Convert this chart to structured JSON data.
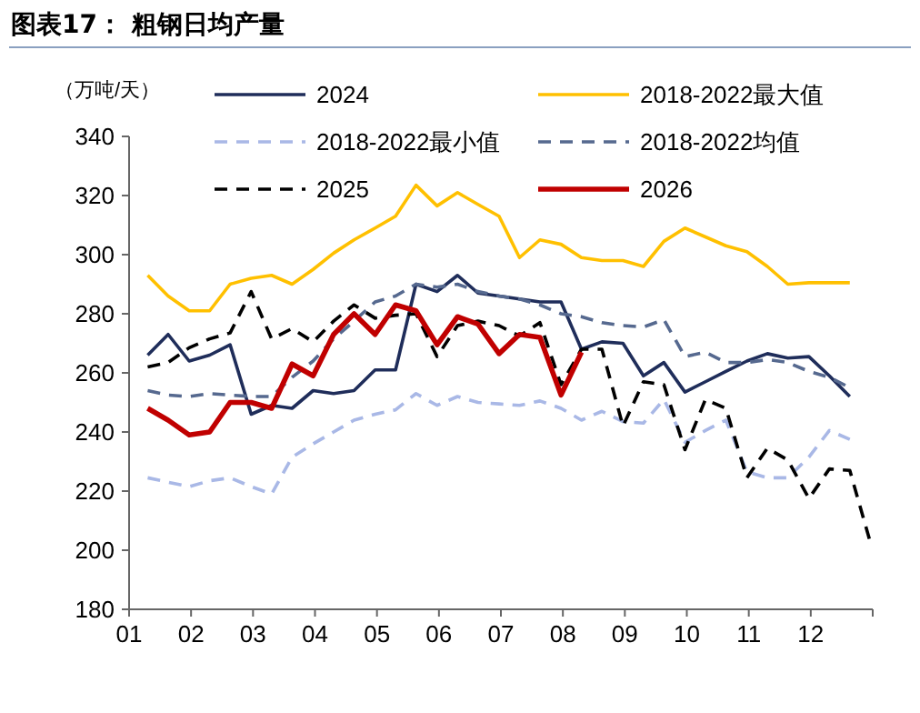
{
  "chart_data": {
    "type": "line",
    "title": "图表17： 粗钢日均产量",
    "ylabel": "（万吨/天）",
    "x": [
      1.3,
      1.63,
      1.97,
      2.3,
      2.63,
      2.97,
      3.3,
      3.63,
      3.97,
      4.3,
      4.63,
      4.97,
      5.3,
      5.63,
      5.97,
      6.3,
      6.63,
      6.97,
      7.3,
      7.63,
      7.97,
      8.3,
      8.63,
      8.97,
      9.3,
      9.63,
      9.97,
      10.3,
      10.63,
      10.97,
      11.3,
      11.63,
      11.97,
      12.3,
      12.63,
      12.97
    ],
    "xlim": [
      1,
      13
    ],
    "xticks": [
      {
        "value": 1,
        "label": "01"
      },
      {
        "value": 2,
        "label": "02"
      },
      {
        "value": 3,
        "label": "03"
      },
      {
        "value": 4,
        "label": "04"
      },
      {
        "value": 5,
        "label": "05"
      },
      {
        "value": 6,
        "label": "06"
      },
      {
        "value": 7,
        "label": "07"
      },
      {
        "value": 8,
        "label": "08"
      },
      {
        "value": 9,
        "label": "09"
      },
      {
        "value": 10,
        "label": "10"
      },
      {
        "value": 11,
        "label": "11"
      },
      {
        "value": 12,
        "label": "12"
      },
      {
        "value": 13,
        "label": null
      }
    ],
    "ylim": [
      180,
      340
    ],
    "yticks": [
      180,
      200,
      220,
      240,
      260,
      280,
      300,
      320,
      340
    ],
    "legend": "top",
    "grid": false,
    "series": [
      {
        "name": "2024",
        "color": "#1f2d5a",
        "line_style": "solid",
        "values": [
          266,
          273,
          264,
          266,
          269.5,
          246,
          249,
          248,
          254,
          253,
          254,
          261,
          261,
          290,
          287.5,
          293,
          287,
          286,
          285,
          284,
          284,
          268,
          270.5,
          270,
          259,
          263.5,
          253.5,
          257,
          260.5,
          264,
          266.5,
          265,
          265.5,
          259,
          252,
          null
        ]
      },
      {
        "name": "2018-2022最大值",
        "color": "#ffc000",
        "line_style": "solid",
        "values": [
          293,
          286,
          281,
          281,
          290,
          292,
          293,
          290,
          295,
          300.5,
          305,
          309,
          313,
          323.5,
          316.5,
          321,
          317,
          313,
          299,
          305,
          303.5,
          299,
          298,
          298,
          296,
          304.5,
          309,
          306,
          303,
          301,
          296,
          290,
          290.5,
          290.5,
          290.5,
          null
        ]
      },
      {
        "name": "2018-2022最小值",
        "color": "#a9b8e6",
        "line_style": "dashed",
        "values": [
          224.5,
          223,
          221.5,
          223.5,
          224.5,
          221.5,
          219,
          231.5,
          236,
          240,
          244,
          246,
          247.5,
          253,
          249,
          252,
          250,
          249.5,
          249,
          250.5,
          248,
          244,
          247,
          243.5,
          243,
          251,
          236.5,
          240.5,
          244,
          226.5,
          224.5,
          224.5,
          231.5,
          240.5,
          237.5,
          null
        ]
      },
      {
        "name": "2018-2022均值",
        "color": "#56698f",
        "line_style": "dashed",
        "values": [
          254,
          252.5,
          252,
          253,
          252.5,
          252,
          252,
          258.5,
          264,
          271.5,
          277.5,
          284,
          286,
          290,
          289,
          290,
          287.5,
          286,
          285,
          283,
          280,
          279,
          277,
          276,
          275.5,
          278,
          265.5,
          267,
          263.5,
          263.5,
          264.5,
          263.5,
          260.5,
          258.5,
          255,
          null
        ]
      },
      {
        "name": "2025",
        "color": "#000000",
        "line_style": "dashed",
        "values": [
          262,
          263.5,
          268.5,
          271.5,
          273.5,
          287.5,
          271.5,
          275,
          270.5,
          277.5,
          283,
          278.5,
          279.5,
          280,
          265.5,
          276,
          277.5,
          276,
          272.5,
          277,
          256,
          268,
          268,
          242,
          257,
          256,
          234,
          251,
          248,
          224.5,
          234.5,
          230.5,
          217.5,
          227.5,
          227,
          202
        ]
      },
      {
        "name": "2026",
        "color": "#c00000",
        "line_style": "solid",
        "values": [
          248,
          244,
          239,
          240,
          250,
          250,
          248,
          263,
          259,
          273,
          280,
          273,
          283,
          281,
          269.5,
          279,
          276.5,
          266.5,
          273,
          272,
          252.5,
          267,
          null,
          null,
          null,
          null,
          null,
          null,
          null,
          null,
          null,
          null,
          null,
          null,
          null,
          null
        ]
      }
    ]
  }
}
